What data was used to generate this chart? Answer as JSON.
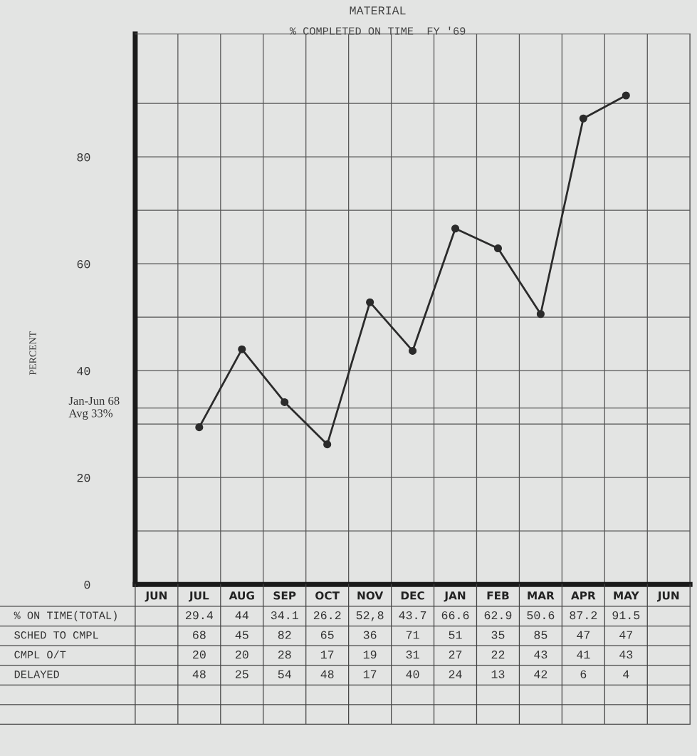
{
  "chart_data": {
    "type": "line",
    "title": "MATERIAL",
    "subtitle": "% COMPLETED ON TIME  FY '69",
    "ylabel": "PERCENT",
    "categories": [
      "JUN",
      "JUL",
      "AUG",
      "SEP",
      "OCT",
      "NOV",
      "DEC",
      "JAN",
      "FEB",
      "MAR",
      "APR",
      "MAY",
      "JUN"
    ],
    "series": [
      {
        "color": "#2b2b2b",
        "values": [
          null,
          29.4,
          44,
          34.1,
          26.2,
          52.8,
          43.7,
          66.6,
          62.9,
          50.6,
          87.2,
          91.5,
          null
        ],
        "value_labels": [
          null,
          "29.4",
          "44",
          "34.1",
          "26.2",
          "52,8",
          "43.7",
          "66.6",
          "62.9",
          "50.6",
          "87.2",
          "91.5",
          null
        ]
      }
    ],
    "ylim": [
      0,
      103
    ],
    "yticks": [
      0,
      {
        "value": 10,
        "label": null
      },
      20,
      {
        "value": 30,
        "label": null
      },
      40,
      {
        "value": 50,
        "label": null
      },
      60,
      {
        "value": 70,
        "label": null
      },
      80,
      {
        "value": 90,
        "label": null
      }
    ],
    "grid": true,
    "marker": "circle",
    "line_style": "solid",
    "ref_lines": [
      {
        "axis": "y",
        "value": 33,
        "label": "Jan-Jun 68\nAvg 33%",
        "color": "#555555"
      }
    ],
    "annotations": [
      "% ON TIME(TOTAL)",
      "SCHED TO CMPL",
      "68",
      "45",
      "82",
      "65",
      "36",
      "71",
      "51",
      "35",
      "85",
      "47",
      "47",
      "CMPL O/T",
      "20",
      "20",
      "28",
      "17",
      "19",
      "31",
      "27",
      "22",
      "43",
      "41",
      "43",
      "DELAYED",
      "48",
      "25",
      "54",
      "48",
      "17",
      "40",
      "24",
      "13",
      "42",
      "6",
      "4"
    ]
  }
}
